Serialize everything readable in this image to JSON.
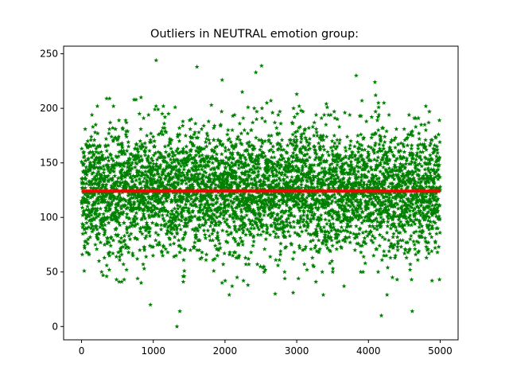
{
  "chart_data": {
    "type": "scatter",
    "title": "Outliers in NEUTRAL emotion group:",
    "xlabel": "",
    "ylabel": "",
    "xlim": [
      -250,
      5250
    ],
    "ylim": [
      -12.2,
      257
    ],
    "grid": false,
    "xticks": [
      0,
      1000,
      2000,
      3000,
      4000,
      5000
    ],
    "yticks": [
      0,
      50,
      100,
      150,
      200,
      250
    ],
    "marker": "star",
    "point_color": "#008000",
    "mean_line": {
      "y": 124,
      "x_range": [
        0,
        4999
      ],
      "color": "#ff0000"
    },
    "n_points": 5000,
    "bulk_range": [
      40,
      210
    ],
    "series": [
      {
        "points": [
          [
            960,
            20
          ],
          [
            1040,
            244
          ],
          [
            1330,
            0
          ],
          [
            1370,
            14
          ],
          [
            1610,
            238
          ],
          [
            1960,
            226
          ],
          [
            2060,
            29
          ],
          [
            2100,
            37
          ],
          [
            2240,
            215
          ],
          [
            2430,
            233
          ],
          [
            2510,
            239
          ],
          [
            2700,
            30
          ],
          [
            2950,
            31
          ],
          [
            3000,
            213
          ],
          [
            3060,
            198
          ],
          [
            3370,
            29
          ],
          [
            3830,
            230
          ],
          [
            4090,
            224
          ],
          [
            4100,
            212
          ],
          [
            4180,
            10
          ],
          [
            4260,
            29
          ],
          [
            4610,
            14
          ],
          [
            4800,
            202
          ],
          [
            4850,
            197
          ],
          [
            560,
            41
          ],
          [
            280,
            50
          ],
          [
            300,
            47
          ],
          [
            350,
            209
          ],
          [
            220,
            202
          ],
          [
            1140,
            202
          ],
          [
            1810,
            203
          ],
          [
            3660,
            37
          ],
          [
            4400,
            43
          ],
          [
            4580,
            52
          ],
          [
            2320,
            38
          ]
        ]
      }
    ]
  }
}
